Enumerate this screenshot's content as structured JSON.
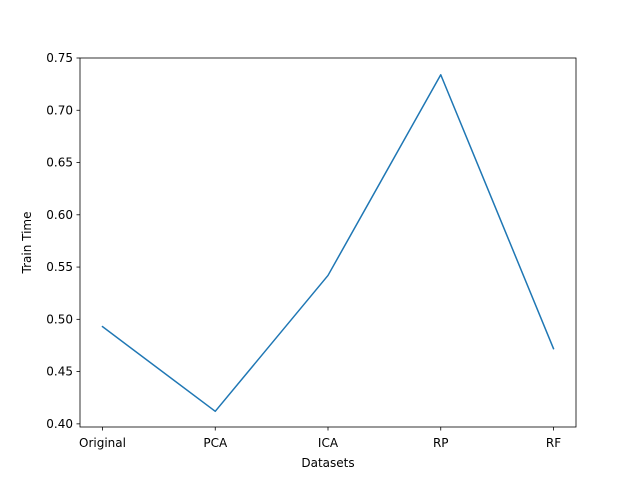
{
  "chart_data": {
    "type": "line",
    "title": "",
    "xlabel": "Datasets",
    "ylabel": "Train Time",
    "categories": [
      "Original",
      "PCA",
      "ICA",
      "RP",
      "RF"
    ],
    "series": [
      {
        "values": [
          0.493,
          0.412,
          0.542,
          0.734,
          0.472
        ]
      }
    ],
    "ylim": [
      0.397,
      0.75
    ],
    "yticks": [
      0.4,
      0.45,
      0.5,
      0.55,
      0.6,
      0.65,
      0.7,
      0.75
    ],
    "ytick_labels": [
      "0.40",
      "0.45",
      "0.50",
      "0.55",
      "0.60",
      "0.65",
      "0.70",
      "0.75"
    ],
    "grid": false,
    "legend": "none",
    "line_color": "#1f77b4"
  }
}
